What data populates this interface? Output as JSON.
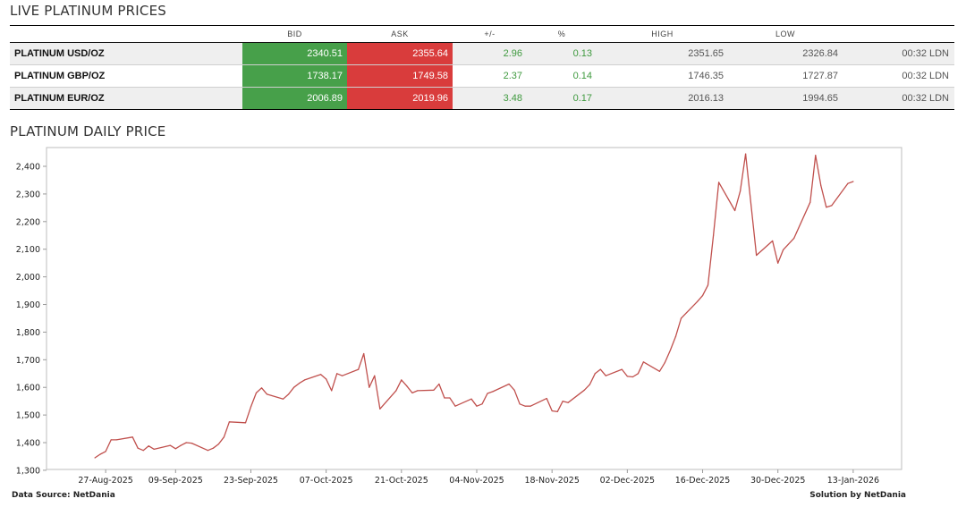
{
  "live_title": "LIVE PLATINUM PRICES",
  "chart_title": "PLATINUM DAILY PRICE",
  "table": {
    "headers": {
      "name": "",
      "bid": "BID",
      "ask": "ASK",
      "chg": "+/-",
      "pct": "%",
      "high": "HIGH",
      "low": "LOW",
      "time": ""
    },
    "rows": [
      {
        "name": "PLATINUM USD/OZ",
        "bid": "2340.51",
        "ask": "2355.64",
        "chg": "2.96",
        "pct": "0.13",
        "high": "2351.65",
        "low": "2326.84",
        "time": "00:32 LDN"
      },
      {
        "name": "PLATINUM GBP/OZ",
        "bid": "1738.17",
        "ask": "1749.58",
        "chg": "2.37",
        "pct": "0.14",
        "high": "1746.35",
        "low": "1727.87",
        "time": "00:32 LDN"
      },
      {
        "name": "PLATINUM EUR/OZ",
        "bid": "2006.89",
        "ask": "2019.96",
        "chg": "3.48",
        "pct": "0.17",
        "high": "2016.13",
        "low": "1994.65",
        "time": "00:32 LDN"
      }
    ]
  },
  "colors": {
    "bid": "#47a04a",
    "ask": "#d93c3c",
    "line": "#c0504d",
    "change_text": "#3f9a3f"
  },
  "chart_data": {
    "type": "line",
    "title": "",
    "xlabel": "",
    "ylabel": "",
    "ylim": [
      1300,
      2450
    ],
    "yticks": [
      1300,
      1400,
      1500,
      1600,
      1700,
      1800,
      1900,
      2000,
      2100,
      2200,
      2300,
      2400
    ],
    "ytick_labels": [
      "1,300",
      "1,400",
      "1,500",
      "1,600",
      "1,700",
      "1,800",
      "1,900",
      "2,000",
      "2,100",
      "2,200",
      "2,300",
      "2,400"
    ],
    "xticks": [
      "27-Aug-2025",
      "09-Sep-2025",
      "23-Sep-2025",
      "07-Oct-2025",
      "21-Oct-2025",
      "04-Nov-2025",
      "18-Nov-2025",
      "02-Dec-2025",
      "16-Dec-2025",
      "30-Dec-2025",
      "13-Jan-2026"
    ],
    "grid": false,
    "series": [
      {
        "name": "",
        "x": [
          "2025-08-25",
          "2025-08-26",
          "2025-08-27",
          "2025-08-28",
          "2025-08-29",
          "2025-09-01",
          "2025-09-02",
          "2025-09-03",
          "2025-09-04",
          "2025-09-05",
          "2025-09-08",
          "2025-09-09",
          "2025-09-10",
          "2025-09-11",
          "2025-09-12",
          "2025-09-15",
          "2025-09-16",
          "2025-09-17",
          "2025-09-18",
          "2025-09-19",
          "2025-09-22",
          "2025-09-23",
          "2025-09-24",
          "2025-09-25",
          "2025-09-26",
          "2025-09-29",
          "2025-09-30",
          "2025-10-01",
          "2025-10-02",
          "2025-10-03",
          "2025-10-06",
          "2025-10-07",
          "2025-10-08",
          "2025-10-09",
          "2025-10-10",
          "2025-10-13",
          "2025-10-14",
          "2025-10-15",
          "2025-10-16",
          "2025-10-17",
          "2025-10-20",
          "2025-10-21",
          "2025-10-22",
          "2025-10-23",
          "2025-10-24",
          "2025-10-27",
          "2025-10-28",
          "2025-10-29",
          "2025-10-30",
          "2025-10-31",
          "2025-11-03",
          "2025-11-04",
          "2025-11-05",
          "2025-11-06",
          "2025-11-07",
          "2025-11-10",
          "2025-11-11",
          "2025-11-12",
          "2025-11-13",
          "2025-11-14",
          "2025-11-17",
          "2025-11-18",
          "2025-11-19",
          "2025-11-20",
          "2025-11-21",
          "2025-11-24",
          "2025-11-25",
          "2025-11-26",
          "2025-11-27",
          "2025-11-28",
          "2025-12-01",
          "2025-12-02",
          "2025-12-03",
          "2025-12-04",
          "2025-12-05",
          "2025-12-08",
          "2025-12-09",
          "2025-12-10",
          "2025-12-11",
          "2025-12-12",
          "2025-12-15",
          "2025-12-16",
          "2025-12-17",
          "2025-12-18",
          "2025-12-19",
          "2025-12-22",
          "2025-12-23",
          "2025-12-24",
          "2025-12-26",
          "2025-12-29",
          "2025-12-30",
          "2025-12-31",
          "2026-01-02",
          "2026-01-05",
          "2026-01-06",
          "2026-01-07",
          "2026-01-08",
          "2026-01-09",
          "2026-01-12",
          "2026-01-13"
        ],
        "values": [
          1345,
          1358,
          1368,
          1410,
          1410,
          1420,
          1380,
          1372,
          1388,
          1376,
          1390,
          1378,
          1390,
          1400,
          1398,
          1372,
          1380,
          1395,
          1420,
          1475,
          1472,
          1530,
          1580,
          1598,
          1575,
          1558,
          1575,
          1600,
          1615,
          1627,
          1647,
          1630,
          1588,
          1650,
          1642,
          1665,
          1722,
          1600,
          1642,
          1522,
          1588,
          1627,
          1605,
          1580,
          1588,
          1590,
          1612,
          1562,
          1562,
          1532,
          1558,
          1532,
          1540,
          1578,
          1585,
          1612,
          1590,
          1540,
          1532,
          1532,
          1560,
          1515,
          1512,
          1550,
          1545,
          1590,
          1610,
          1650,
          1665,
          1642,
          1665,
          1640,
          1638,
          1650,
          1692,
          1658,
          1690,
          1735,
          1785,
          1850,
          1910,
          1932,
          1970,
          2150,
          2342,
          2240,
          2310,
          2445,
          2078,
          2130,
          2050,
          2098,
          2140,
          2270,
          2440,
          2330,
          2252,
          2258,
          2338,
          2345
        ]
      }
    ]
  },
  "footer_left": "Data Source: NetDania",
  "footer_right": "Solution by NetDania"
}
